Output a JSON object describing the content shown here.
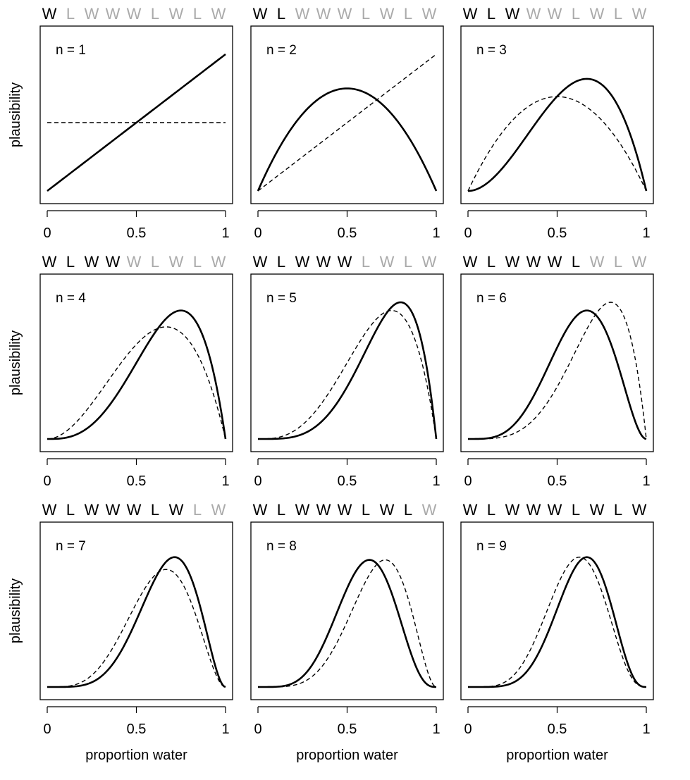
{
  "sequence": [
    "W",
    "L",
    "W",
    "W",
    "W",
    "L",
    "W",
    "L",
    "W"
  ],
  "colors": {
    "observed": "#000000",
    "unobserved": "#aaaaaa",
    "curve": "#000000",
    "frame": "#000000"
  },
  "ylabel": "plausibility",
  "xlabel": "proportion water",
  "xticks": [
    "0",
    "0.5",
    "1"
  ],
  "chart_data": [
    {
      "type": "line",
      "panel": 1,
      "label": "n = 1",
      "observed": [
        "W"
      ],
      "unobserved": [
        "L",
        "W",
        "W",
        "W",
        "L",
        "W",
        "L",
        "W"
      ],
      "xlim": [
        0,
        1
      ],
      "x": [
        0,
        0.5,
        1
      ],
      "series": [
        {
          "style": "solid",
          "values": [
            0,
            0.5,
            1
          ]
        },
        {
          "style": "dashed",
          "values": [
            0.5,
            0.5,
            0.5
          ]
        }
      ]
    },
    {
      "type": "line",
      "panel": 2,
      "label": "n = 2",
      "observed": [
        "W",
        "L"
      ],
      "unobserved": [
        "W",
        "W",
        "W",
        "L",
        "W",
        "L",
        "W"
      ],
      "xlim": [
        0,
        1
      ],
      "x": [
        0,
        0.5,
        1
      ],
      "series": [
        {
          "style": "solid",
          "values": [
            0,
            0.75,
            0
          ]
        },
        {
          "style": "dashed",
          "values": [
            0,
            0.5,
            1
          ]
        }
      ]
    },
    {
      "type": "line",
      "panel": 3,
      "label": "n = 3",
      "observed": [
        "W",
        "L",
        "W"
      ],
      "unobserved": [
        "W",
        "W",
        "L",
        "W",
        "L",
        "W"
      ],
      "xlim": [
        0,
        1
      ],
      "x": [
        0,
        0.5,
        0.67,
        1
      ],
      "series": [
        {
          "style": "solid",
          "values": [
            0,
            0.62,
            0.82,
            0
          ]
        },
        {
          "style": "dashed",
          "values": [
            0,
            0.69,
            0.62,
            0
          ]
        }
      ]
    },
    {
      "type": "line",
      "panel": 4,
      "label": "n = 4",
      "observed": [
        "W",
        "L",
        "W",
        "W"
      ],
      "unobserved": [
        "W",
        "L",
        "W",
        "L",
        "W"
      ],
      "xlim": [
        0,
        1
      ],
      "x": [
        0,
        0.5,
        0.67,
        0.75,
        1
      ],
      "series": [
        {
          "style": "solid",
          "values": [
            0,
            0.45,
            0.84,
            0.94,
            0
          ]
        },
        {
          "style": "dashed",
          "values": [
            0,
            0.6,
            0.82,
            0.78,
            0
          ]
        }
      ]
    },
    {
      "type": "line",
      "panel": 5,
      "label": "n = 5",
      "observed": [
        "W",
        "L",
        "W",
        "W",
        "W"
      ],
      "unobserved": [
        "L",
        "W",
        "L",
        "W"
      ],
      "xlim": [
        0,
        1
      ],
      "x": [
        0,
        0.5,
        0.75,
        0.8,
        1
      ],
      "series": [
        {
          "style": "solid",
          "values": [
            0,
            0.35,
            0.85,
            1.0,
            0
          ]
        },
        {
          "style": "dashed",
          "values": [
            0,
            0.48,
            0.94,
            0.85,
            0
          ]
        }
      ]
    },
    {
      "type": "line",
      "panel": 6,
      "label": "n = 6",
      "observed": [
        "W",
        "L",
        "W",
        "W",
        "W",
        "L"
      ],
      "unobserved": [
        "W",
        "L",
        "W"
      ],
      "xlim": [
        0,
        1
      ],
      "x": [
        0,
        0.5,
        0.67,
        0.8,
        1
      ],
      "series": [
        {
          "style": "solid",
          "values": [
            0,
            0.58,
            0.94,
            0.68,
            0
          ]
        },
        {
          "style": "dashed",
          "values": [
            0,
            0.35,
            0.82,
            1.0,
            0
          ]
        }
      ]
    },
    {
      "type": "line",
      "panel": 7,
      "label": "n = 7",
      "observed": [
        "W",
        "L",
        "W",
        "W",
        "W",
        "L",
        "W"
      ],
      "unobserved": [
        "L",
        "W"
      ],
      "xlim": [
        0,
        1
      ],
      "x": [
        0,
        0.5,
        0.67,
        0.71,
        1
      ],
      "series": [
        {
          "style": "solid",
          "values": [
            0,
            0.45,
            0.9,
            0.95,
            0
          ]
        },
        {
          "style": "dashed",
          "values": [
            0,
            0.56,
            0.86,
            0.82,
            0
          ]
        }
      ]
    },
    {
      "type": "line",
      "panel": 8,
      "label": "n = 8",
      "observed": [
        "W",
        "L",
        "W",
        "W",
        "W",
        "L",
        "W",
        "L"
      ],
      "unobserved": [
        "W"
      ],
      "xlim": [
        0,
        1
      ],
      "x": [
        0,
        0.5,
        0.62,
        0.71,
        1
      ],
      "series": [
        {
          "style": "solid",
          "values": [
            0,
            0.65,
            0.93,
            0.75,
            0
          ]
        },
        {
          "style": "dashed",
          "values": [
            0,
            0.5,
            0.78,
            0.93,
            0
          ]
        }
      ]
    },
    {
      "type": "line",
      "panel": 9,
      "label": "n = 9",
      "observed": [
        "W",
        "L",
        "W",
        "W",
        "W",
        "L",
        "W",
        "L",
        "W"
      ],
      "unobserved": [],
      "xlim": [
        0,
        1
      ],
      "x": [
        0,
        0.5,
        0.62,
        0.67,
        1
      ],
      "series": [
        {
          "style": "solid",
          "values": [
            0,
            0.55,
            0.9,
            0.95,
            0
          ]
        },
        {
          "style": "dashed",
          "values": [
            0,
            0.65,
            0.95,
            0.88,
            0
          ]
        }
      ]
    }
  ]
}
